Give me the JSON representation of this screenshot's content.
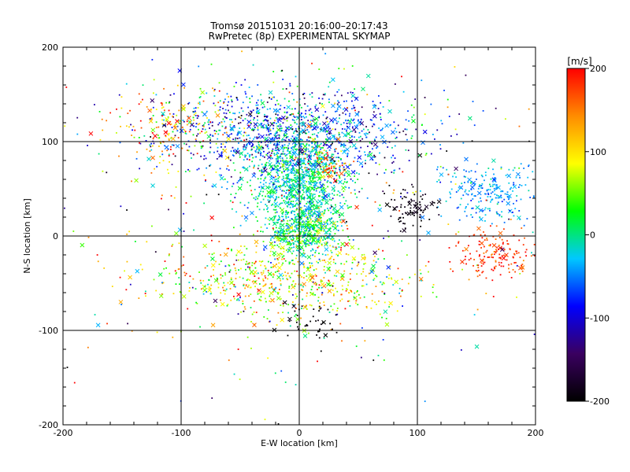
{
  "chart_data": {
    "type": "scatter",
    "title": "Tromsø 20151031 20:16:00–20:17:43",
    "subtitle": "RwPretec (8p) EXPERIMENTAL SKYMAP",
    "xlabel": "E-W location [km]",
    "ylabel": "N-S location [km]",
    "xlim": [
      -200,
      200
    ],
    "ylim": [
      -200,
      200
    ],
    "xticks": [
      "-200",
      "-100",
      "0",
      "100",
      "200"
    ],
    "yticks": [
      "-200",
      "-100",
      "0",
      "100",
      "200"
    ],
    "grid": true,
    "colorbar": {
      "label": "[m/s]",
      "range": [
        -200,
        200
      ],
      "ticks": [
        "-200",
        "-100",
        "0",
        "100",
        "200"
      ],
      "colormap": [
        "#000000",
        "#3a0060",
        "#0000ff",
        "#00c8ff",
        "#00ff00",
        "#ffff00",
        "#ff8c00",
        "#ff0000"
      ]
    },
    "point_markers": [
      "dot",
      "x"
    ],
    "clusters": [
      {
        "center": [
          -5,
          110
        ],
        "spread": [
          55,
          22
        ],
        "count": 900,
        "mean_velocity": -70,
        "velocity_spread": 50
      },
      {
        "center": [
          0,
          55
        ],
        "spread": [
          20,
          28
        ],
        "count": 1100,
        "mean_velocity": -10,
        "velocity_spread": 30
      },
      {
        "center": [
          5,
          5
        ],
        "spread": [
          14,
          12
        ],
        "count": 450,
        "mean_velocity": 10,
        "velocity_spread": 40
      },
      {
        "center": [
          -5,
          -45
        ],
        "spread": [
          55,
          20
        ],
        "count": 650,
        "mean_velocity": 80,
        "velocity_spread": 60
      },
      {
        "center": [
          160,
          45
        ],
        "spread": [
          20,
          15
        ],
        "count": 220,
        "mean_velocity": -40,
        "velocity_spread": 20
      },
      {
        "center": [
          165,
          -20
        ],
        "spread": [
          18,
          12
        ],
        "count": 160,
        "mean_velocity": 180,
        "velocity_spread": 20
      },
      {
        "center": [
          -110,
          115
        ],
        "spread": [
          25,
          18
        ],
        "count": 160,
        "mean_velocity": 130,
        "velocity_spread": 60
      },
      {
        "center": [
          95,
          30
        ],
        "spread": [
          10,
          10
        ],
        "count": 90,
        "mean_velocity": -190,
        "velocity_spread": 10
      },
      {
        "center": [
          25,
          75
        ],
        "spread": [
          10,
          8
        ],
        "count": 80,
        "mean_velocity": 150,
        "velocity_spread": 60
      },
      {
        "center": [
          -20,
          110
        ],
        "spread": [
          100,
          40
        ],
        "count": 260,
        "mean_velocity": 0,
        "velocity_spread": 120
      },
      {
        "center": [
          0,
          0
        ],
        "spread": [
          110,
          90
        ],
        "count": 300,
        "mean_velocity": 20,
        "velocity_spread": 140
      },
      {
        "center": [
          10,
          -90
        ],
        "spread": [
          15,
          10
        ],
        "count": 40,
        "mean_velocity": -200,
        "velocity_spread": 10
      }
    ]
  }
}
